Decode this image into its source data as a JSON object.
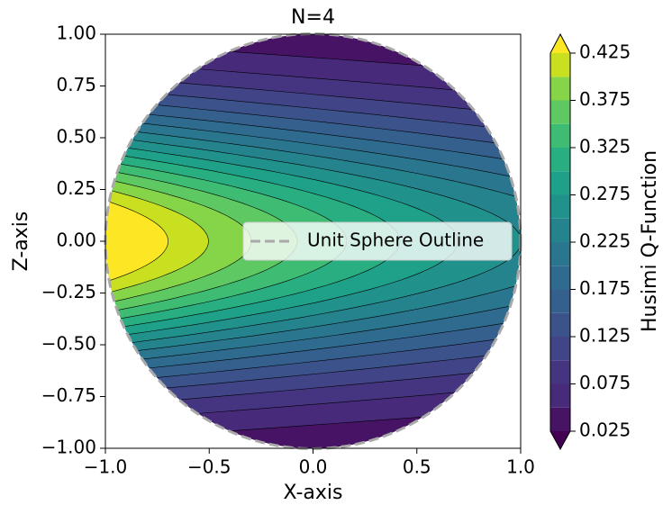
{
  "chart_data": {
    "type": "contourf",
    "title": "N=4",
    "x_label": "X-axis",
    "y_label": "Z-axis",
    "xlim": [
      -1,
      1
    ],
    "ylim": [
      -1,
      1
    ],
    "xticks": [
      {
        "value": -1,
        "label": "−1.0"
      },
      {
        "value": -0.5,
        "label": "−0.5"
      },
      {
        "value": 0,
        "label": "0.0"
      },
      {
        "value": 0.5,
        "label": "0.5"
      },
      {
        "value": 1,
        "label": "1.0"
      }
    ],
    "yticks": [
      {
        "value": -1,
        "label": "−1.00"
      },
      {
        "value": -0.75,
        "label": "−0.75"
      },
      {
        "value": -0.5,
        "label": "−0.50"
      },
      {
        "value": -0.25,
        "label": "−0.25"
      },
      {
        "value": 0,
        "label": "0.00"
      },
      {
        "value": 0.25,
        "label": "0.25"
      },
      {
        "value": 0.5,
        "label": "0.50"
      },
      {
        "value": 0.75,
        "label": "0.75"
      },
      {
        "value": 1,
        "label": "1.00"
      }
    ],
    "colorbar": {
      "label": "Husimi Q-Function",
      "levels": [
        0.025,
        0.05,
        0.075,
        0.1,
        0.125,
        0.15,
        0.175,
        0.2,
        0.225,
        0.25,
        0.275,
        0.3,
        0.325,
        0.35,
        0.375,
        0.4,
        0.425
      ],
      "ticks": [
        0.025,
        0.075,
        0.125,
        0.175,
        0.225,
        0.275,
        0.325,
        0.375,
        0.425
      ],
      "under_color": "#440154",
      "over_color": "#fde725",
      "colors": [
        "#471365",
        "#472a7a",
        "#453581",
        "#414487",
        "#3b528b",
        "#355f8d",
        "#2f6b8e",
        "#2a768e",
        "#25838e",
        "#21918c",
        "#1fa088",
        "#28ae80",
        "#3fbc73",
        "#5ec962",
        "#86d549",
        "#c8e020"
      ]
    },
    "outline": {
      "name": "Unit Sphere Outline",
      "color": "#a9a9a9",
      "dashed": true
    },
    "legend_position": "center right"
  }
}
